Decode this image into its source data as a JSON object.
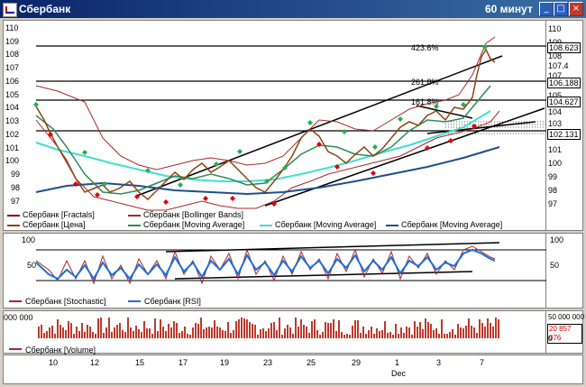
{
  "window": {
    "title": "Сбербанк",
    "timeframe": "60 минут",
    "buttons": [
      "_",
      "□",
      "×"
    ]
  },
  "price_pane": {
    "left_ticks": [
      "110",
      "109",
      "108",
      "107",
      "106",
      "105",
      "104",
      "103",
      "102",
      "101",
      "100",
      "99",
      "98",
      "97"
    ],
    "right_ticks": [
      "110",
      "109",
      "108",
      "107",
      "106",
      "105",
      "104",
      "103",
      "102",
      "101",
      "100",
      "99",
      "98",
      "97"
    ],
    "fib_labels": [
      "423.6%",
      "261.8%",
      "161.8%"
    ],
    "price_boxes": [
      "108.623",
      "108",
      "107.4",
      "106.188",
      "104.627",
      "102.131"
    ],
    "legend": [
      {
        "label": "Сбербанк [Fractals]",
        "color": "#8b0000"
      },
      {
        "label": "Сбербанк [Bollinger Bands]",
        "color": "#a52a2a"
      },
      {
        "label": "Сбербанк [Цена]",
        "color": "#8b4513"
      },
      {
        "label": "Сбербанк [Moving Average]",
        "color": "#2e8b57"
      },
      {
        "label": "Сбербанк [Moving Average]",
        "color": "#40e0d0"
      },
      {
        "label": "Сбербанк [Moving Average]",
        "color": "#1f4e8c"
      }
    ]
  },
  "osc_pane": {
    "left_ticks": [
      "100",
      "50"
    ],
    "right_ticks": [
      "100",
      "50"
    ],
    "legend": [
      {
        "label": "Сбербанк [Stochastic]",
        "color": "#a52a2a"
      },
      {
        "label": "Сбербанк [RSI]",
        "color": "#1e6fd9"
      }
    ]
  },
  "volume_pane": {
    "left_tick": "000 000",
    "right_ticks": [
      "50 000 000",
      "20 857 076",
      "0"
    ],
    "legend": [
      {
        "label": "Сбербанк [Volume]",
        "color": "#a52a2a"
      }
    ]
  },
  "date_axis": {
    "labels": [
      "10",
      "12",
      "15",
      "17",
      "19",
      "23",
      "25",
      "29",
      "1",
      "3",
      "7"
    ],
    "month": "Dec"
  },
  "chart_data": {
    "type": "line",
    "series": [
      {
        "name": "Сбербанк [Цена]",
        "values": [
          104.3,
          103.5,
          102.4,
          101.2,
          99.8,
          98.3,
          98.6,
          99.1,
          98.4,
          98.9,
          99.5,
          98.7,
          98.2,
          98.9,
          99.6,
          100.3,
          99.8,
          100.5,
          101.1,
          99.9,
          99.2,
          98.6,
          99.5,
          100.6,
          101.9,
          103.2,
          102.5,
          102.8,
          102.1,
          101.5,
          100.6,
          100.9,
          101.6,
          102.8,
          103.7,
          103.2,
          102.4,
          103.1,
          104.2,
          106.5,
          108.6,
          108.1,
          107.4
        ]
      }
    ],
    "ylim": [
      97,
      110
    ]
  }
}
